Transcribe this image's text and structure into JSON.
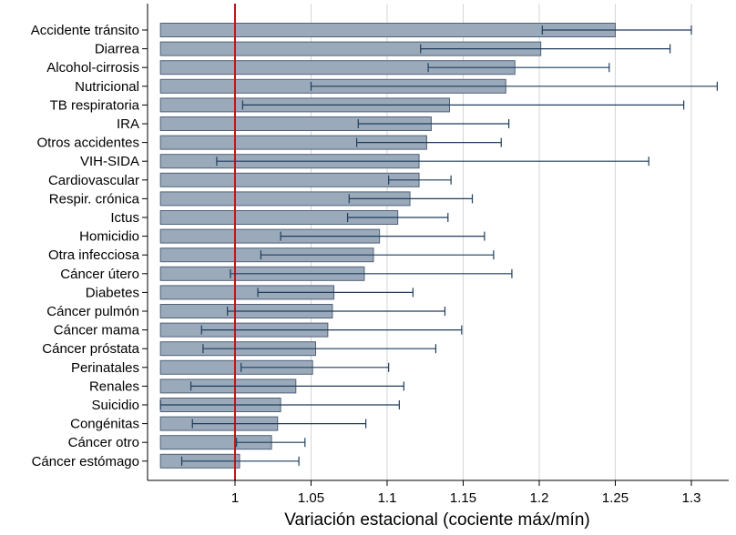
{
  "colors": {
    "bar_fill": "#9aaabb",
    "bar_stroke": "#4f6176",
    "errorbar": "#1f3d5c",
    "reference_line": "#c0161b",
    "grid": "#d6d6d6",
    "axis": "#000000"
  },
  "chart_data": {
    "type": "bar",
    "orientation": "horizontal",
    "xlabel": "Variación estacional (cociente máx/mín)",
    "xlim": [
      0.951,
      1.316
    ],
    "xticks": [
      "1",
      "1.05",
      "1.1",
      "1.15",
      "1.2",
      "1.25",
      "1.3"
    ],
    "grid": "vertical",
    "reference_line": 1,
    "categories": [
      "Accidente tránsito",
      "Diarrea",
      "Alcohol-cirrosis",
      "Nutricional",
      "TB respiratoria",
      "IRA",
      "Otros accidentes",
      "VIH-SIDA",
      "Cardiovascular",
      "Respir. crónica",
      "Ictus",
      "Homicidio",
      "Otra infecciosa",
      "Cáncer útero",
      "Diabetes",
      "Cáncer pulmón",
      "Cáncer mama",
      "Cáncer próstata",
      "Perinatales",
      "Renales",
      "Suicidio",
      "Congénitas",
      "Cáncer otro",
      "Cáncer estómago"
    ],
    "series": [
      {
        "values": [
          1.25,
          1.201,
          1.184,
          1.178,
          1.141,
          1.129,
          1.126,
          1.121,
          1.121,
          1.115,
          1.107,
          1.095,
          1.091,
          1.085,
          1.065,
          1.064,
          1.061,
          1.053,
          1.051,
          1.04,
          1.03,
          1.028,
          1.024,
          1.003
        ],
        "ci_low": [
          1.202,
          1.122,
          1.127,
          1.05,
          1.005,
          1.081,
          1.08,
          0.988,
          1.101,
          1.075,
          1.074,
          1.03,
          1.017,
          0.997,
          1.015,
          0.995,
          0.978,
          0.979,
          1.004,
          0.971,
          0.951,
          0.972,
          1.001,
          0.965
        ],
        "ci_high": [
          1.3,
          1.286,
          1.246,
          1.317,
          1.295,
          1.18,
          1.175,
          1.272,
          1.142,
          1.156,
          1.14,
          1.164,
          1.17,
          1.182,
          1.117,
          1.138,
          1.149,
          1.132,
          1.101,
          1.111,
          1.108,
          1.086,
          1.046,
          1.042
        ]
      }
    ]
  }
}
